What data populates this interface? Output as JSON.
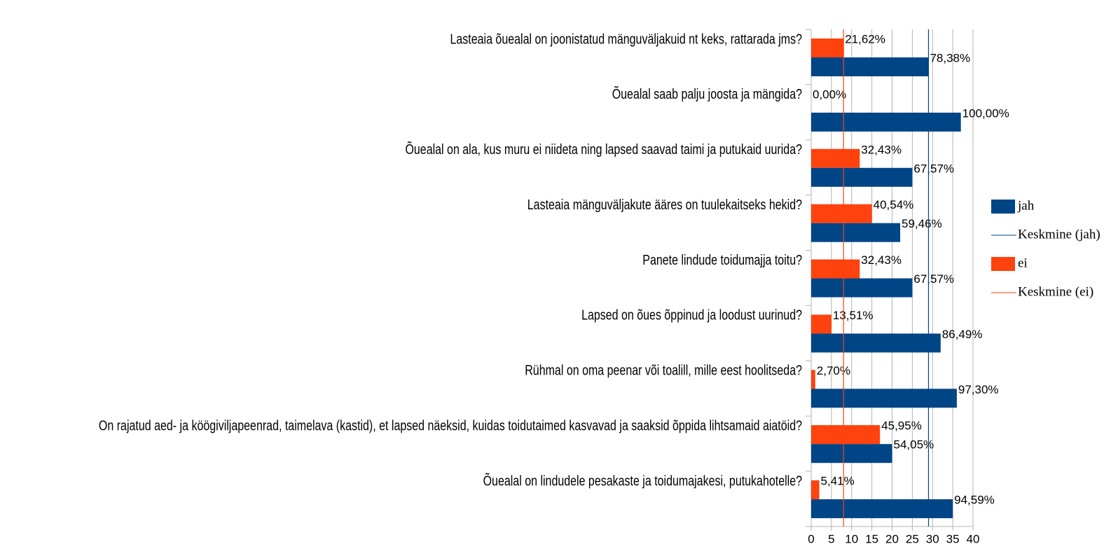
{
  "chart_data": {
    "type": "hbar",
    "categories": [
      "Lasteaia õuealal on joonistatud mänguväljakuid nt keks, rattarada jms?",
      "Õuealal saab palju joosta ja mängida?",
      "Õuealal on ala, kus muru ei niideta ning lapsed saavad taimi ja putukaid uurida?",
      "Lasteaia mänguväljakute ääres on tuulekaitseks hekid?",
      "Panete lindude toidumajja toitu?",
      "Lapsed on õues õppinud ja loodust uurinud?",
      "Rühmal on oma peenar või toalill, mille eest hoolitseda?",
      "On rajatud aed- ja köögiviljapeenrad, taimelava (kastid), et lapsed näeksid, kuidas toidutaimed kasvavad ja saaksid õppida lihtsamaid aiatöid?",
      "Õuealal on lindudele pesakaste ja toidumajakesi, putukahotelle?"
    ],
    "series": [
      {
        "name": "jah",
        "color": "#004586",
        "values": [
          29,
          37,
          25,
          22,
          25,
          32,
          36,
          20,
          35
        ],
        "value_labels": [
          "78,38%",
          "100,00%",
          "67,57%",
          "59,46%",
          "67,57%",
          "86,49%",
          "97,30%",
          "54,05%",
          "94,59%"
        ]
      },
      {
        "name": "ei",
        "color": "#ff420e",
        "values": [
          8,
          0,
          12,
          15,
          12,
          5,
          1,
          17,
          2
        ],
        "value_labels": [
          "21,62%",
          "0,00%",
          "32,43%",
          "40,54%",
          "32,43%",
          "13,51%",
          "2,70%",
          "45,95%",
          "5,41%"
        ]
      }
    ],
    "mean_lines": [
      {
        "name": "Keskmine (jah)",
        "color": "#004586",
        "value": 29
      },
      {
        "name": "Keskmine (ei)",
        "color": "#ff420e",
        "value": 8
      }
    ],
    "xlim": [
      0,
      40
    ],
    "xticks": [
      0,
      5,
      10,
      15,
      20,
      25,
      30,
      35,
      40
    ],
    "grid": true
  }
}
